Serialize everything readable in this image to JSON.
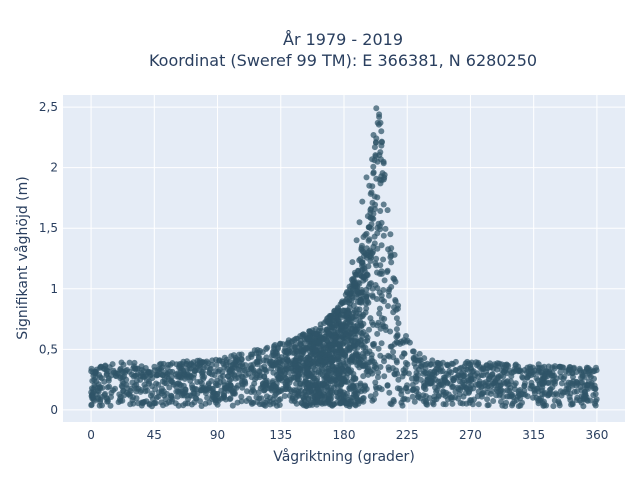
{
  "chart_data": {
    "type": "scatter",
    "title_lines": [
      "År 1979 - 2019",
      "Koordinat (Sweref 99 TM): E 366381, N 6280250"
    ],
    "xlabel": "Vågriktning (grader)",
    "ylabel": "Signifikant våghöjd (m)",
    "xlim": [
      -20,
      380
    ],
    "ylim": [
      -0.1,
      2.6
    ],
    "x_ticks": [
      0,
      45,
      90,
      135,
      180,
      225,
      270,
      315,
      360
    ],
    "x_tick_labels": [
      "0",
      "45",
      "90",
      "135",
      "180",
      "225",
      "270",
      "315",
      "360"
    ],
    "y_ticks": [
      0,
      0.5,
      1,
      1.5,
      2,
      2.5
    ],
    "y_tick_labels": [
      "0",
      "0,5",
      "1",
      "1,5",
      "2",
      "2,5"
    ],
    "grid": true,
    "series": [
      {
        "marker_color": "#2f5468",
        "envelope_x": [
          0,
          20,
          45,
          60,
          90,
          110,
          135,
          150,
          160,
          170,
          180,
          190,
          195,
          200,
          203,
          205,
          207,
          210,
          215,
          220,
          225,
          230,
          240,
          250,
          270,
          300,
          315,
          340,
          360
        ],
        "envelope_y_max": [
          0.35,
          0.4,
          0.38,
          0.4,
          0.42,
          0.48,
          0.55,
          0.62,
          0.68,
          0.78,
          0.92,
          1.2,
          1.5,
          1.9,
          2.3,
          2.45,
          2.3,
          1.8,
          1.2,
          0.8,
          0.6,
          0.5,
          0.42,
          0.4,
          0.4,
          0.38,
          0.38,
          0.36,
          0.35
        ],
        "peak_points": [
          [
            203,
            2.49
          ],
          [
            205,
            2.44
          ],
          [
            204,
            2.37
          ],
          [
            206,
            2.37
          ],
          [
            201,
            2.27
          ],
          [
            207,
            2.21
          ],
          [
            202,
            2.17
          ],
          [
            200,
            2.07
          ],
          [
            196,
            1.92
          ],
          [
            209,
            1.94
          ],
          [
            198,
            1.85
          ],
          [
            206,
            1.87
          ],
          [
            193,
            1.72
          ],
          [
            211,
            1.65
          ],
          [
            197,
            1.6
          ],
          [
            191,
            1.55
          ],
          [
            213,
            1.45
          ],
          [
            189,
            1.4
          ],
          [
            216,
            1.28
          ],
          [
            186,
            1.22
          ]
        ]
      }
    ]
  }
}
